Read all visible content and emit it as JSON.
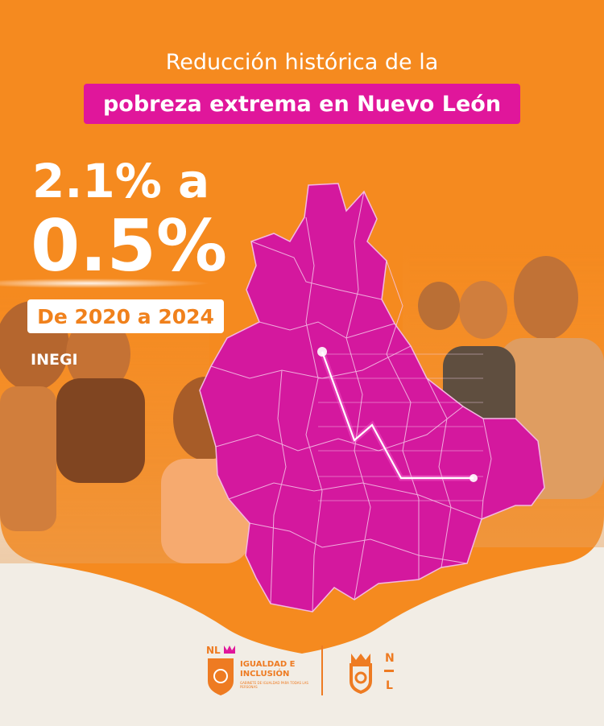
{
  "header": {
    "title_line1": "Reducción histórica de la",
    "title_highlight": "pobreza extrema en Nuevo León"
  },
  "stats": {
    "from": "2.1% a",
    "to": "0.5%",
    "period": "De 2020 a 2024",
    "source": "INEGI"
  },
  "footer": {
    "badge_letters": "NL",
    "logo_title": "IGUALDAD E INCLUSIÓN",
    "logo_subtitle": "GABINETE DE IGUALDAD PARA TODAS LAS PERSONAS",
    "nl_letter_n": "N",
    "nl_letter_l": "L"
  },
  "colors": {
    "orange": "#f58a1f",
    "magenta": "#d4189e",
    "pill": "#e0169b",
    "paper": "#f2ede5",
    "logo": "#ee7b22"
  },
  "icons": {
    "map": "nuevo-leon-map",
    "trend": "downward-trend-line",
    "badge": "crown-shield-icon",
    "mark": "lion-head-icon"
  }
}
